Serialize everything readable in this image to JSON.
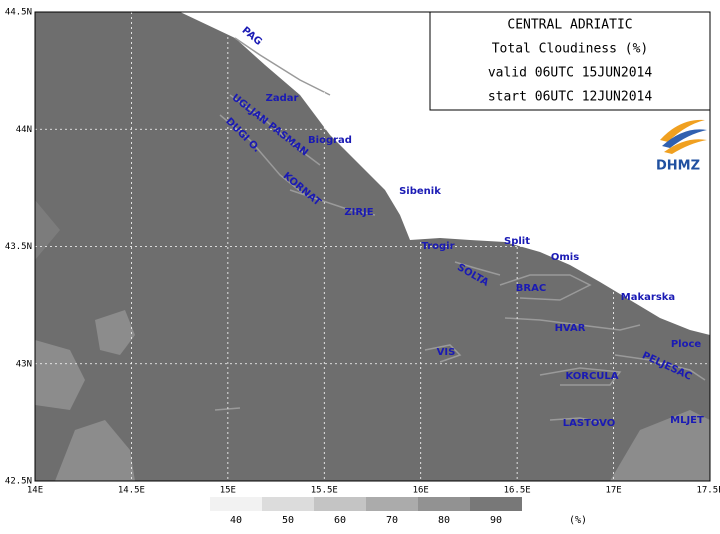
{
  "title_box": [
    "CENTRAL ADRIATIC",
    "Total Cloudiness (%)",
    "valid 06UTC 15JUN2014",
    "start 06UTC 12JUN2014"
  ],
  "logo": "DHMZ",
  "map": {
    "xlim": [
      14,
      17.5
    ],
    "ylim": [
      42.5,
      44.5
    ],
    "xticks": [
      {
        "value": 14,
        "label": "14E"
      },
      {
        "value": 14.5,
        "label": "14.5E"
      },
      {
        "value": 15,
        "label": "15E"
      },
      {
        "value": 15.5,
        "label": "15.5E"
      },
      {
        "value": 16,
        "label": "16E"
      },
      {
        "value": 16.5,
        "label": "16.5E"
      },
      {
        "value": 17,
        "label": "17E"
      },
      {
        "value": 17.5,
        "label": "17.5E"
      }
    ],
    "yticks": [
      {
        "value": 42.5,
        "label": "42.5N"
      },
      {
        "value": 43,
        "label": "43N"
      },
      {
        "value": 43.5,
        "label": "43.5N"
      },
      {
        "value": 44,
        "label": "44N"
      },
      {
        "value": 44.5,
        "label": "44.5N"
      }
    ],
    "places": [
      "PAG",
      "Zadar",
      "UGLJAN PASMAN",
      "DUGI O.",
      "KORNAT",
      "Biograd",
      "ZIRJE",
      "Sibenik",
      "Trogir",
      "Split",
      "Omis",
      "SOLTA",
      "BRAC",
      "Makarska",
      "HVAR",
      "Ploce",
      "VIS",
      "PELJESAC",
      "KORCULA",
      "LASTOVO",
      "MLJET"
    ]
  },
  "colorbar": {
    "ticks": [
      40,
      50,
      60,
      70,
      80,
      90
    ],
    "colors": [
      "#f2f2f2",
      "#dcdcdc",
      "#c4c4c4",
      "#ababab",
      "#929292",
      "#787878"
    ],
    "unit": "(%)"
  }
}
